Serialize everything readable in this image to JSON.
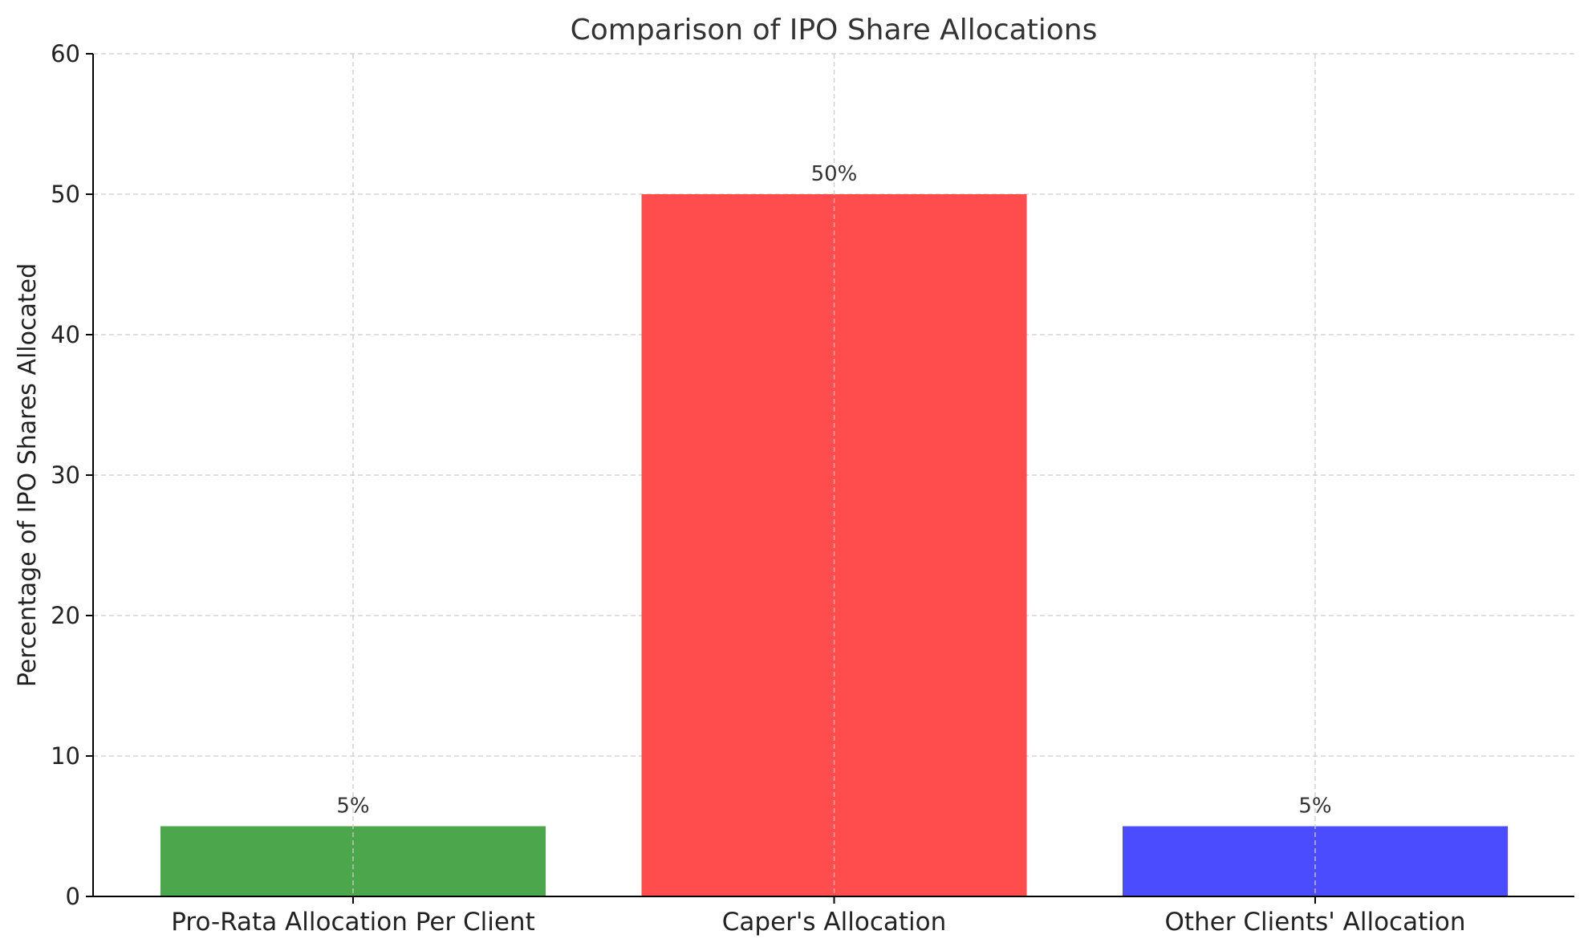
{
  "chart_data": {
    "type": "bar",
    "title": "Comparison of IPO Share Allocations",
    "xlabel": "",
    "ylabel": "Percentage of IPO Shares Allocated",
    "categories": [
      "Pro-Rata Allocation Per Client",
      "Caper's Allocation",
      "Other Clients' Allocation"
    ],
    "values": [
      5,
      50,
      5
    ],
    "value_labels": [
      "5%",
      "50%",
      "5%"
    ],
    "colors": [
      "#4ca64c",
      "#ff4c4c",
      "#4c4cff"
    ],
    "ylim": [
      0,
      60
    ],
    "yticks": [
      0,
      10,
      20,
      30,
      40,
      50,
      60
    ],
    "grid": true,
    "legend": "none"
  }
}
